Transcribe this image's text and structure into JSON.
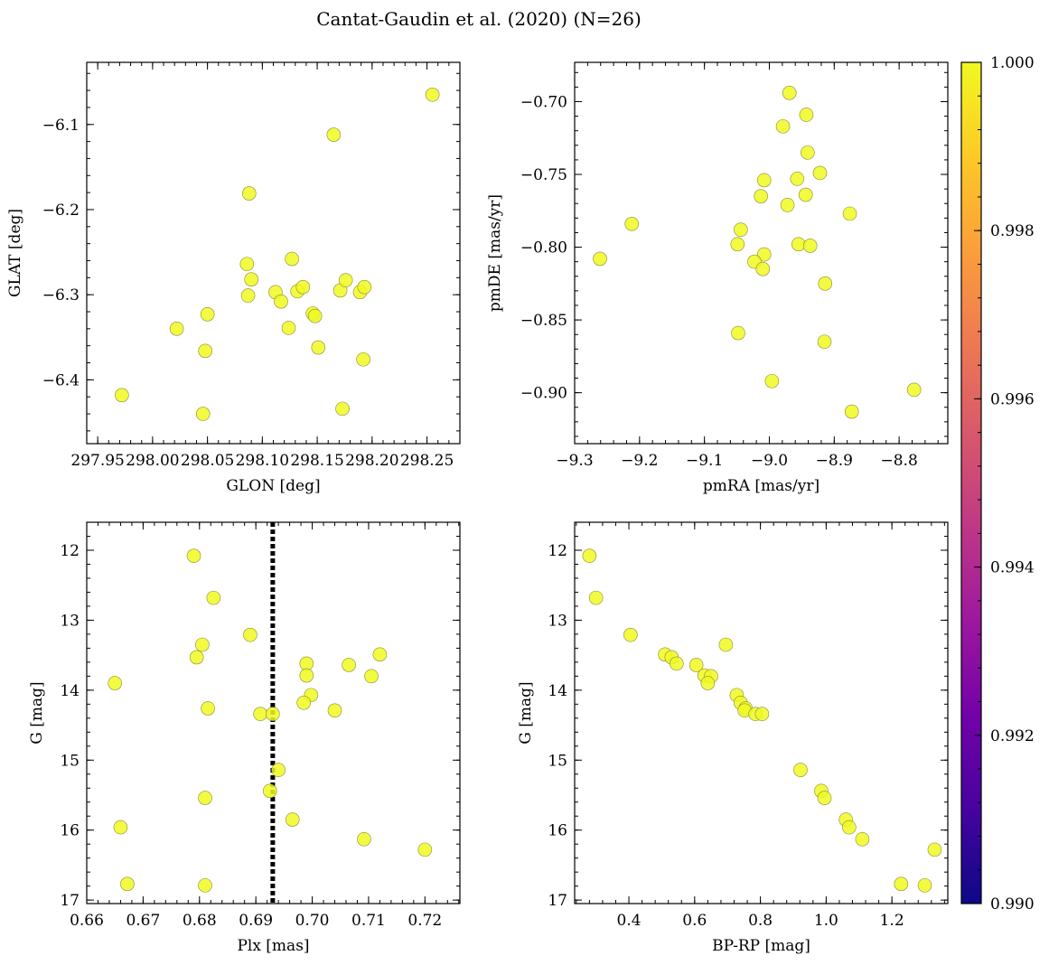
{
  "figure_title": "Cantat-Gaudin et al. (2020) (N=26)",
  "point_color": "#f0f921",
  "colorbar": {
    "min": 0.99,
    "max": 1.0,
    "ticks": [
      0.99,
      0.992,
      0.994,
      0.996,
      0.998,
      1.0
    ],
    "tick_labels": [
      "0.990",
      "0.992",
      "0.994",
      "0.996",
      "0.998",
      "1.000"
    ],
    "stops": [
      "#0d0887",
      "#46039f",
      "#7201a8",
      "#9c179e",
      "#bd3786",
      "#d8576b",
      "#ed7953",
      "#fb9f3a",
      "#fdca26",
      "#f0f921"
    ]
  },
  "chart_data": [
    {
      "type": "scatter",
      "title": "",
      "xlabel": "GLON [deg]",
      "ylabel": "GLAT [deg]",
      "xlim": [
        297.94,
        298.28
      ],
      "ylim": [
        -6.475,
        -6.027
      ],
      "xticks": [
        297.95,
        298.0,
        298.05,
        298.1,
        298.15,
        298.2,
        298.25
      ],
      "xtick_labels": [
        "297.95",
        "298.00",
        "298.05",
        "298.10",
        "298.15",
        "298.20",
        "298.25"
      ],
      "yticks": [
        -6.4,
        -6.3,
        -6.2,
        -6.1
      ],
      "ytick_labels": [
        "−6.4",
        "−6.3",
        "−6.2",
        "−6.1"
      ],
      "x": [
        298.255,
        298.165,
        298.088,
        298.086,
        298.09,
        298.087,
        298.127,
        298.112,
        298.117,
        298.132,
        298.137,
        298.124,
        298.146,
        298.148,
        298.151,
        298.171,
        298.176,
        298.189,
        298.193,
        298.192,
        298.173,
        298.05,
        298.022,
        298.048,
        297.972,
        298.046
      ],
      "y": [
        -6.065,
        -6.112,
        -6.181,
        -6.264,
        -6.282,
        -6.301,
        -6.258,
        -6.297,
        -6.308,
        -6.296,
        -6.291,
        -6.339,
        -6.322,
        -6.325,
        -6.362,
        -6.295,
        -6.283,
        -6.297,
        -6.291,
        -6.376,
        -6.434,
        -6.323,
        -6.34,
        -6.366,
        -6.418,
        -6.44
      ]
    },
    {
      "type": "scatter",
      "title": "",
      "xlabel": "pmRA [mas/yr]",
      "ylabel": "pmDE [mas/yr]",
      "xlim": [
        -9.3,
        -8.725
      ],
      "ylim": [
        -0.935,
        -0.673
      ],
      "xticks": [
        -9.3,
        -9.2,
        -9.1,
        -9.0,
        -8.9,
        -8.8
      ],
      "xtick_labels": [
        "−9.3",
        "−9.2",
        "−9.1",
        "−9.0",
        "−8.9",
        "−8.8"
      ],
      "yticks": [
        -0.9,
        -0.85,
        -0.8,
        -0.75,
        -0.7
      ],
      "ytick_labels": [
        "−0.90",
        "−0.85",
        "−0.80",
        "−0.75",
        "−0.70"
      ],
      "x": [
        -8.969,
        -8.943,
        -8.979,
        -8.941,
        -8.957,
        -8.922,
        -9.008,
        -8.944,
        -9.013,
        -8.972,
        -8.876,
        -9.044,
        -9.049,
        -8.955,
        -8.937,
        -9.008,
        -9.023,
        -9.01,
        -8.914,
        -9.261,
        -9.212,
        -9.048,
        -8.915,
        -8.996,
        -8.777,
        -8.873
      ],
      "y": [
        -0.694,
        -0.709,
        -0.717,
        -0.735,
        -0.753,
        -0.749,
        -0.754,
        -0.764,
        -0.765,
        -0.771,
        -0.777,
        -0.788,
        -0.798,
        -0.798,
        -0.799,
        -0.805,
        -0.81,
        -0.815,
        -0.825,
        -0.808,
        -0.784,
        -0.859,
        -0.865,
        -0.892,
        -0.898,
        -0.913
      ]
    },
    {
      "type": "scatter",
      "title": "",
      "xlabel": "Plx [mas]",
      "ylabel": "G [mag]",
      "xlim": [
        0.66,
        0.7262
      ],
      "ylim": [
        17.05,
        11.6
      ],
      "y_inverted": true,
      "xticks": [
        0.66,
        0.67,
        0.68,
        0.69,
        0.7,
        0.71,
        0.72
      ],
      "xtick_labels": [
        "0.66",
        "0.67",
        "0.68",
        "0.69",
        "0.70",
        "0.71",
        "0.72"
      ],
      "yticks": [
        12,
        13,
        14,
        15,
        16,
        17
      ],
      "ytick_labels": [
        "12",
        "13",
        "14",
        "15",
        "16",
        "17"
      ],
      "vline": {
        "x": 0.693,
        "style": "dotted",
        "color": "#000000"
      },
      "x": [
        0.679,
        0.6825,
        0.689,
        0.6805,
        0.6795,
        0.712,
        0.699,
        0.7065,
        0.699,
        0.7105,
        0.665,
        0.6998,
        0.6985,
        0.6815,
        0.704,
        0.6908,
        0.693,
        0.694,
        0.6925,
        0.681,
        0.6965,
        0.666,
        0.7092,
        0.72,
        0.6672,
        0.681
      ],
      "y": [
        12.08,
        12.68,
        13.21,
        13.35,
        13.53,
        13.49,
        13.62,
        13.64,
        13.79,
        13.8,
        13.9,
        14.07,
        14.18,
        14.26,
        14.29,
        14.34,
        14.34,
        15.14,
        15.44,
        15.54,
        15.85,
        15.96,
        16.13,
        16.28,
        16.77,
        16.79
      ]
    },
    {
      "type": "scatter",
      "title": "",
      "xlabel": "BP-RP [mag]",
      "ylabel": "G [mag]",
      "xlim": [
        0.235,
        1.37
      ],
      "ylim": [
        17.05,
        11.6
      ],
      "y_inverted": true,
      "xticks": [
        0.4,
        0.6,
        0.8,
        1.0,
        1.2
      ],
      "xtick_labels": [
        "0.4",
        "0.6",
        "0.8",
        "1.0",
        "1.2"
      ],
      "yticks": [
        12,
        13,
        14,
        15,
        16,
        17
      ],
      "ytick_labels": [
        "12",
        "13",
        "14",
        "15",
        "16",
        "17"
      ],
      "x": [
        0.28,
        0.3,
        0.405,
        0.51,
        0.53,
        0.545,
        0.605,
        0.63,
        0.65,
        0.64,
        0.695,
        0.728,
        0.74,
        0.755,
        0.752,
        0.785,
        0.805,
        0.922,
        0.985,
        0.995,
        1.06,
        1.07,
        1.11,
        1.228,
        1.3,
        1.33
      ],
      "y": [
        12.08,
        12.68,
        13.21,
        13.49,
        13.53,
        13.62,
        13.64,
        13.79,
        13.8,
        13.9,
        13.35,
        14.07,
        14.18,
        14.26,
        14.29,
        14.34,
        14.34,
        15.14,
        15.44,
        15.54,
        15.85,
        15.96,
        16.13,
        16.77,
        16.79,
        16.28
      ]
    }
  ]
}
